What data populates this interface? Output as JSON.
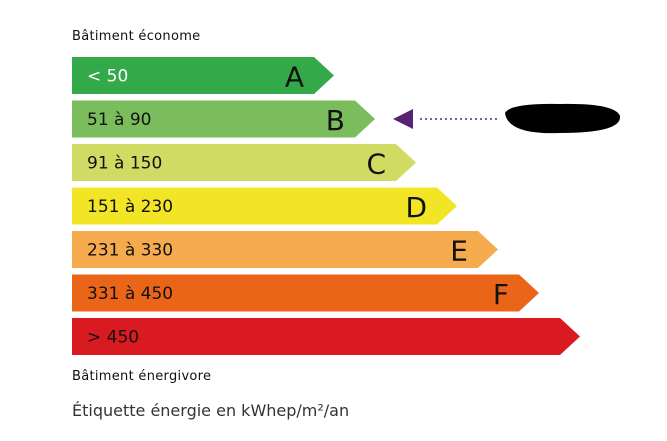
{
  "header": {
    "top_label": "Bâtiment économe",
    "bottom_label": "Bâtiment énergivore"
  },
  "footer": {
    "unit_label": "Étiquette énergie en kWhep/m²/an"
  },
  "classes": [
    {
      "letter": "A",
      "range": "< 50",
      "color": "#33a94a",
      "text_color": "#ffffff"
    },
    {
      "letter": "B",
      "range": "51 à 90",
      "color": "#7bbd5d",
      "text_color": "#111111"
    },
    {
      "letter": "C",
      "range": "91 à 150",
      "color": "#cfdb62",
      "text_color": "#111111"
    },
    {
      "letter": "D",
      "range": "151 à 230",
      "color": "#f1e525",
      "text_color": "#111111"
    },
    {
      "letter": "E",
      "range": "231 à 330",
      "color": "#f5aa4d",
      "text_color": "#111111"
    },
    {
      "letter": "F",
      "range": "331 à 450",
      "color": "#eb6519",
      "text_color": "#111111"
    },
    {
      "letter": "",
      "range": "> 450",
      "color": "#d91b21",
      "text_color": "#111111"
    }
  ],
  "indicator": {
    "class": "B",
    "color": "#5a2275",
    "value_redacted": true
  }
}
